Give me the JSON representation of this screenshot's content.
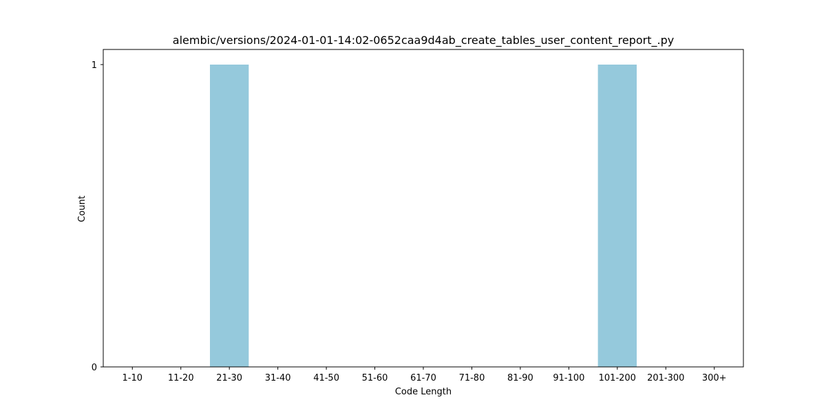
{
  "chart_data": {
    "type": "bar",
    "title": "alembic/versions/2024-01-01-14:02-0652caa9d4ab_create_tables_user_content_report_.py",
    "xlabel": "Code Length",
    "ylabel": "Count",
    "categories": [
      "1-10",
      "11-20",
      "21-30",
      "31-40",
      "41-50",
      "51-60",
      "61-70",
      "71-80",
      "81-90",
      "91-100",
      "101-200",
      "201-300",
      "300+"
    ],
    "values": [
      0,
      0,
      1,
      0,
      0,
      0,
      0,
      0,
      0,
      0,
      1,
      0,
      0
    ],
    "yticks": [
      0,
      1
    ],
    "ylim": [
      0,
      1.05
    ],
    "grid": false,
    "bar_color": "#95c9dc"
  }
}
